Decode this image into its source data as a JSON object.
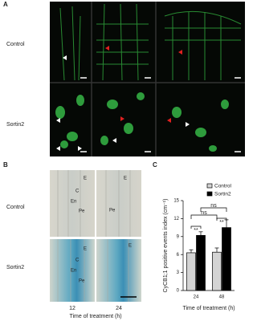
{
  "panel_a": {
    "label": "A",
    "rows": [
      "Control",
      "Sortin2"
    ]
  },
  "panel_b": {
    "label": "B",
    "rows": [
      "Control",
      "Sortin2"
    ],
    "columns": [
      "12",
      "24"
    ],
    "xlabel": "Time of treatment (h)",
    "annotations": [
      "E",
      "C",
      "En",
      "Pe",
      "E",
      "Pe",
      "E",
      "C",
      "En",
      "Pe",
      "E"
    ]
  },
  "chart_data": {
    "type": "bar",
    "panel_label": "C",
    "ylabel": "CyCB1;1 positive events index (cm⁻¹)",
    "xlabel": "Time of treatment (h)",
    "categories": [
      "24",
      "48"
    ],
    "series": [
      {
        "name": "Control",
        "color": "#d4d4d4",
        "values": [
          6.3,
          6.4
        ],
        "errors": [
          0.5,
          0.7
        ]
      },
      {
        "name": "Sortin2",
        "color": "#000000",
        "values": [
          9.2,
          10.5
        ],
        "errors": [
          0.6,
          1.3
        ]
      }
    ],
    "ylim": [
      0,
      15
    ],
    "yticks": [
      0,
      3,
      6,
      9,
      12,
      15
    ],
    "annotations": [
      "**",
      "**",
      "ns",
      "ns"
    ]
  }
}
